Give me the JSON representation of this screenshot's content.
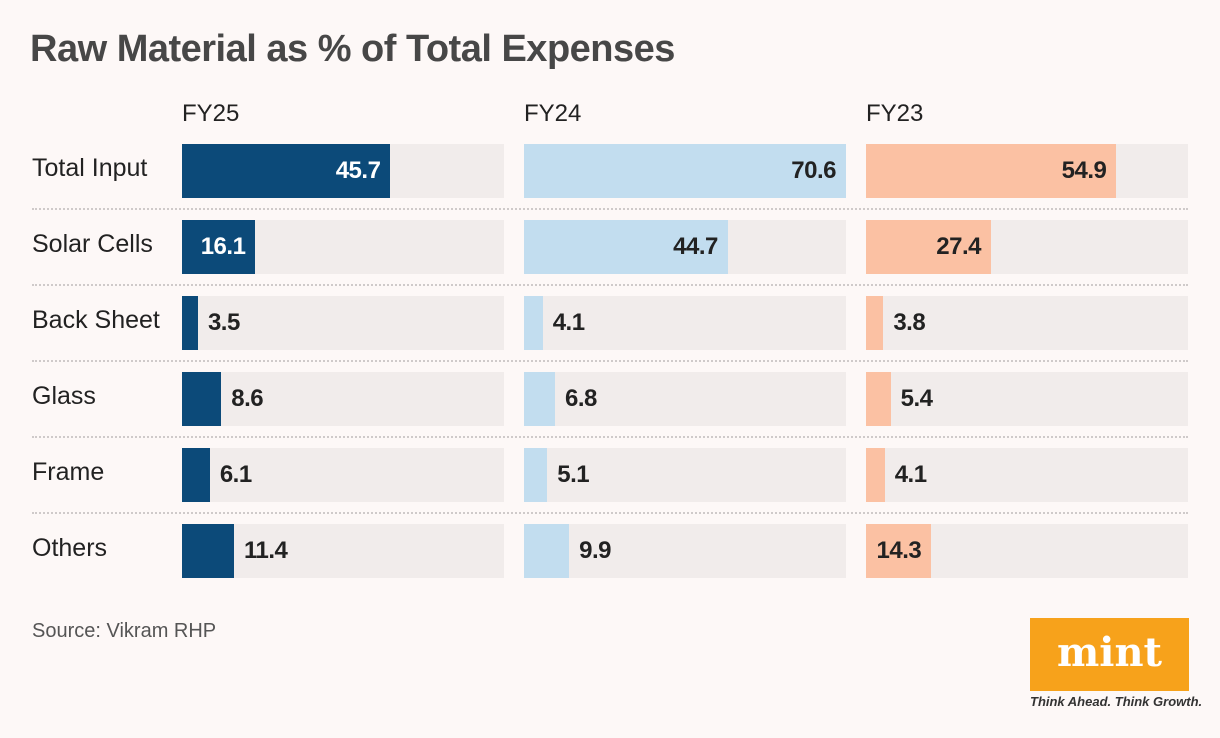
{
  "chart_data": {
    "type": "bar",
    "title": "Raw Material as % of Total Expenses",
    "categories": [
      "Total Input",
      "Solar Cells",
      "Back Sheet",
      "Glass",
      "Frame",
      "Others"
    ],
    "series": [
      {
        "name": "FY25",
        "color": "#0c4a79",
        "label_color": "#ffffff",
        "values": [
          45.7,
          16.1,
          3.5,
          8.6,
          6.1,
          11.4
        ]
      },
      {
        "name": "FY24",
        "color": "#c2ddef",
        "label_color": "#222222",
        "values": [
          70.6,
          44.7,
          4.1,
          6.8,
          5.1,
          9.9
        ]
      },
      {
        "name": "FY23",
        "color": "#fbc1a3",
        "label_color": "#222222",
        "values": [
          54.9,
          27.4,
          3.8,
          5.4,
          4.1,
          14.3
        ]
      }
    ],
    "xlim": [
      0,
      70.6
    ],
    "grid": false,
    "source": "Source: Vikram RHP"
  },
  "logo": {
    "text": "mint",
    "tagline": "Think Ahead. Think Growth."
  }
}
